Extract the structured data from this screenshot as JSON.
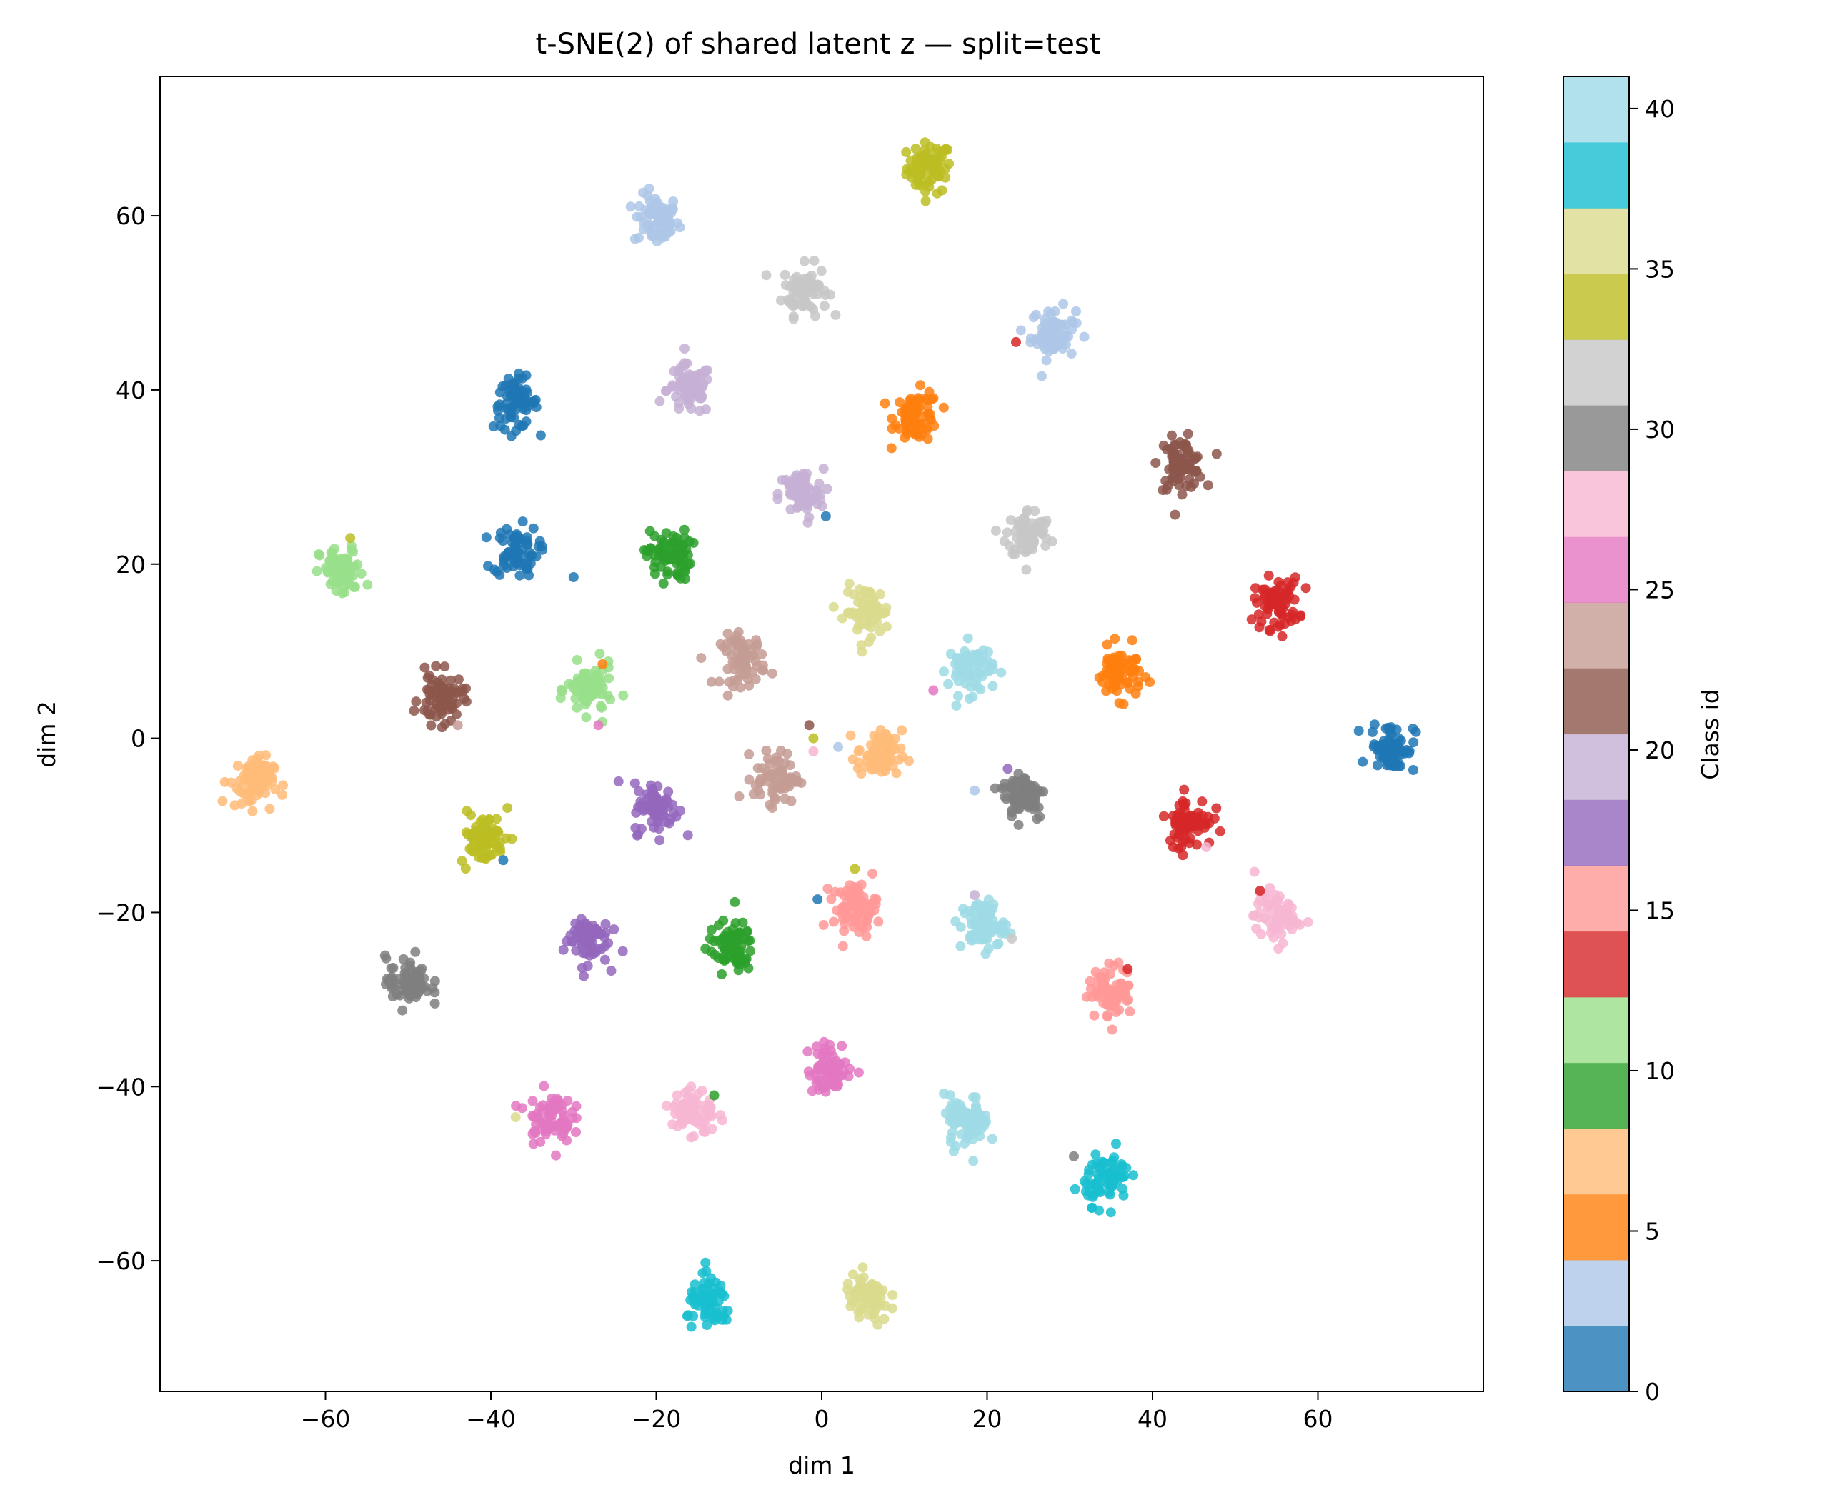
{
  "chart_data": {
    "type": "scatter",
    "title": "t-SNE(2) of shared latent z — split=test",
    "xlabel": "dim 1",
    "ylabel": "dim 2",
    "xlim": [
      -80,
      80
    ],
    "ylim": [
      -75,
      76
    ],
    "xticks": [
      -60,
      -40,
      -20,
      0,
      20,
      40,
      60
    ],
    "yticks": [
      -60,
      -40,
      -20,
      0,
      20,
      40,
      60
    ],
    "grid": false,
    "colormap": "tab20",
    "colorbar": {
      "label": "Class id",
      "range": [
        0,
        41
      ],
      "ticks": [
        0,
        5,
        10,
        15,
        20,
        25,
        30,
        35,
        40
      ],
      "bands": [
        "#1f77b4",
        "#aec7e8",
        "#ff7f0e",
        "#ffbb78",
        "#2ca02c",
        "#98df8a",
        "#d62728",
        "#ff9896",
        "#9467bd",
        "#c5b0d5",
        "#8c564b",
        "#c49c94",
        "#e377c2",
        "#f7b6d2",
        "#7f7f7f",
        "#c7c7c7",
        "#bcbd22",
        "#dbdb8d",
        "#17becf",
        "#9edae5"
      ]
    },
    "clusters": [
      {
        "x": 13,
        "y": 65.5,
        "color": "#bcbd22"
      },
      {
        "x": -20,
        "y": 59.5,
        "color": "#aec7e8"
      },
      {
        "x": -2,
        "y": 51.5,
        "color": "#c7c7c7"
      },
      {
        "x": 28,
        "y": 46.5,
        "color": "#aec7e8"
      },
      {
        "x": -37,
        "y": 38.5,
        "color": "#1f77b4"
      },
      {
        "x": -16,
        "y": 40,
        "color": "#c5b0d5"
      },
      {
        "x": 11.5,
        "y": 37,
        "color": "#ff7f0e"
      },
      {
        "x": 43.5,
        "y": 31.5,
        "color": "#8c564b"
      },
      {
        "x": -2.5,
        "y": 28,
        "color": "#c5b0d5"
      },
      {
        "x": 25,
        "y": 23.5,
        "color": "#c7c7c7"
      },
      {
        "x": -37,
        "y": 21.5,
        "color": "#1f77b4"
      },
      {
        "x": -18.5,
        "y": 21,
        "color": "#2ca02c"
      },
      {
        "x": -58,
        "y": 19,
        "color": "#98df8a"
      },
      {
        "x": 55,
        "y": 15.5,
        "color": "#d62728"
      },
      {
        "x": 5.5,
        "y": 14.5,
        "color": "#dbdb8d"
      },
      {
        "x": -9.5,
        "y": 9,
        "color": "#c49c94"
      },
      {
        "x": 18,
        "y": 8,
        "color": "#9edae5"
      },
      {
        "x": 36,
        "y": 7.5,
        "color": "#ff7f0e"
      },
      {
        "x": -28,
        "y": 5.5,
        "color": "#98df8a"
      },
      {
        "x": -46,
        "y": 4.5,
        "color": "#8c564b"
      },
      {
        "x": 69,
        "y": -1,
        "color": "#1f77b4"
      },
      {
        "x": -69,
        "y": -5,
        "color": "#ffbb78"
      },
      {
        "x": 7,
        "y": -2,
        "color": "#ffbb78"
      },
      {
        "x": -5.5,
        "y": -4.5,
        "color": "#c49c94"
      },
      {
        "x": 24.5,
        "y": -6.5,
        "color": "#7f7f7f"
      },
      {
        "x": -20,
        "y": -8,
        "color": "#9467bd"
      },
      {
        "x": 44.5,
        "y": -9.5,
        "color": "#d62728"
      },
      {
        "x": -41,
        "y": -11.5,
        "color": "#bcbd22"
      },
      {
        "x": 4,
        "y": -19.5,
        "color": "#ff9896"
      },
      {
        "x": 19.5,
        "y": -21.5,
        "color": "#9edae5"
      },
      {
        "x": 55,
        "y": -20.5,
        "color": "#f7b6d2"
      },
      {
        "x": -28.5,
        "y": -23,
        "color": "#9467bd"
      },
      {
        "x": -11,
        "y": -24,
        "color": "#2ca02c"
      },
      {
        "x": -50,
        "y": -28,
        "color": "#7f7f7f"
      },
      {
        "x": 35,
        "y": -29,
        "color": "#ff9896"
      },
      {
        "x": 1,
        "y": -38,
        "color": "#e377c2"
      },
      {
        "x": -33,
        "y": -43.5,
        "color": "#e377c2"
      },
      {
        "x": -15.5,
        "y": -43,
        "color": "#f7b6d2"
      },
      {
        "x": 17.5,
        "y": -44,
        "color": "#9edae5"
      },
      {
        "x": 34.5,
        "y": -50.5,
        "color": "#17becf"
      },
      {
        "x": -13.5,
        "y": -65,
        "color": "#17becf"
      },
      {
        "x": 5.5,
        "y": -64.5,
        "color": "#dbdb8d"
      }
    ],
    "outliers": [
      {
        "x": 23.5,
        "y": 45.5,
        "color": "#d62728"
      },
      {
        "x": 0.5,
        "y": 25.5,
        "color": "#1f77b4"
      },
      {
        "x": -30,
        "y": 18.5,
        "color": "#1f77b4"
      },
      {
        "x": -57,
        "y": 23,
        "color": "#bcbd22"
      },
      {
        "x": 13.5,
        "y": 5.5,
        "color": "#e377c2"
      },
      {
        "x": -26.5,
        "y": 8.5,
        "color": "#ff7f0e"
      },
      {
        "x": -27,
        "y": 1.5,
        "color": "#e377c2"
      },
      {
        "x": -1.5,
        "y": 1.5,
        "color": "#8c564b"
      },
      {
        "x": -1,
        "y": 0,
        "color": "#bcbd22"
      },
      {
        "x": 2,
        "y": -1,
        "color": "#aec7e8"
      },
      {
        "x": -1,
        "y": -1.5,
        "color": "#f7b6d2"
      },
      {
        "x": -44,
        "y": 1.5,
        "color": "#c49c94"
      },
      {
        "x": 18.5,
        "y": -6,
        "color": "#aec7e8"
      },
      {
        "x": 22.5,
        "y": -3.5,
        "color": "#9467bd"
      },
      {
        "x": 42.5,
        "y": -12.5,
        "color": "#d62728"
      },
      {
        "x": 46.5,
        "y": -12.5,
        "color": "#f7b6d2"
      },
      {
        "x": -38,
        "y": -8,
        "color": "#bcbd22"
      },
      {
        "x": -38.5,
        "y": -14,
        "color": "#1f77b4"
      },
      {
        "x": 4,
        "y": -15,
        "color": "#bcbd22"
      },
      {
        "x": -0.5,
        "y": -18.5,
        "color": "#1f77b4"
      },
      {
        "x": 18.5,
        "y": -18,
        "color": "#c5b0d5"
      },
      {
        "x": 23,
        "y": -23,
        "color": "#c7c7c7"
      },
      {
        "x": 53,
        "y": -17.5,
        "color": "#d62728"
      },
      {
        "x": 37,
        "y": -26.5,
        "color": "#d62728"
      },
      {
        "x": -13,
        "y": -41,
        "color": "#2ca02c"
      },
      {
        "x": -37,
        "y": -43.5,
        "color": "#dbdb8d"
      },
      {
        "x": 30.5,
        "y": -48,
        "color": "#7f7f7f"
      }
    ]
  }
}
